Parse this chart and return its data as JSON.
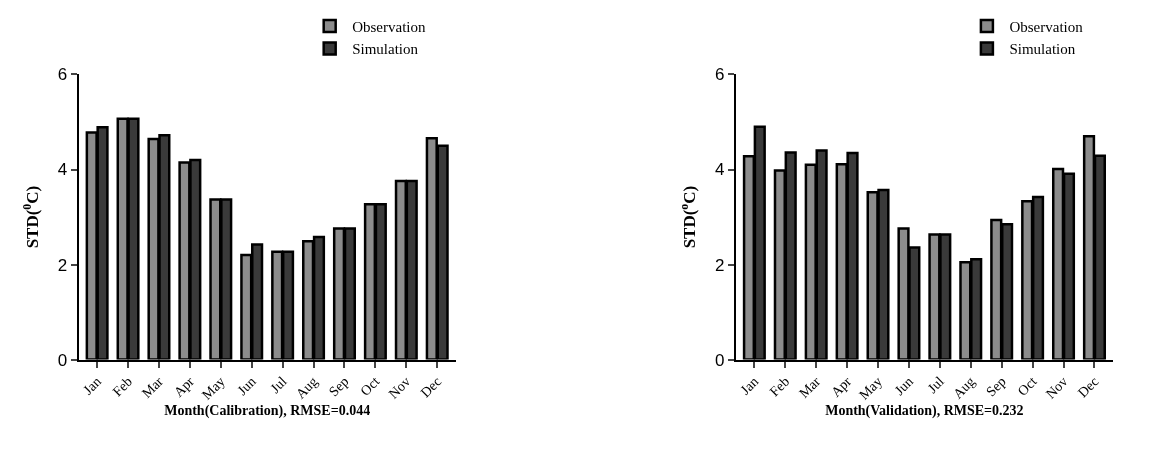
{
  "chart_data": [
    {
      "type": "bar",
      "xlabel": "Month(Calibration), RMSE=0.044",
      "ylabel": "STD($^{0}$C)",
      "categories": [
        "Jan",
        "Feb",
        "Mar",
        "Apr",
        "May",
        "Jun",
        "Jul",
        "Aug",
        "Sep",
        "Oct",
        "Nov",
        "Dec"
      ],
      "ylim": [
        0,
        6
      ],
      "yticks": [
        0,
        2,
        4,
        6
      ],
      "legend": "top right",
      "series": [
        {
          "name": "Observation",
          "color": "#8c8c8c",
          "values": [
            4.78,
            5.07,
            4.64,
            4.15,
            3.37,
            2.2,
            2.27,
            2.49,
            2.76,
            3.27,
            3.76,
            4.66
          ]
        },
        {
          "name": "Simulation",
          "color": "#3a3a3a",
          "values": [
            4.89,
            5.07,
            4.72,
            4.2,
            3.37,
            2.42,
            2.27,
            2.58,
            2.76,
            3.27,
            3.76,
            4.5
          ]
        }
      ]
    },
    {
      "type": "bar",
      "xlabel": "Month(Validation), RMSE=0.232",
      "ylabel": "STD($^{o}$C)",
      "categories": [
        "Jan",
        "Feb",
        "Mar",
        "Apr",
        "May",
        "Jun",
        "Jul",
        "Aug",
        "Sep",
        "Oct",
        "Nov",
        "Dec"
      ],
      "ylim": [
        0,
        6
      ],
      "yticks": [
        0,
        2,
        4,
        6
      ],
      "legend": "top right",
      "series": [
        {
          "name": "Observation",
          "color": "#8c8c8c",
          "values": [
            4.28,
            3.98,
            4.1,
            4.11,
            3.52,
            2.76,
            2.63,
            2.05,
            2.94,
            3.33,
            4.01,
            4.7
          ]
        },
        {
          "name": "Simulation",
          "color": "#3a3a3a",
          "values": [
            4.9,
            4.36,
            4.4,
            4.35,
            3.57,
            2.36,
            2.63,
            2.11,
            2.85,
            3.42,
            3.91,
            4.29
          ]
        }
      ]
    }
  ]
}
